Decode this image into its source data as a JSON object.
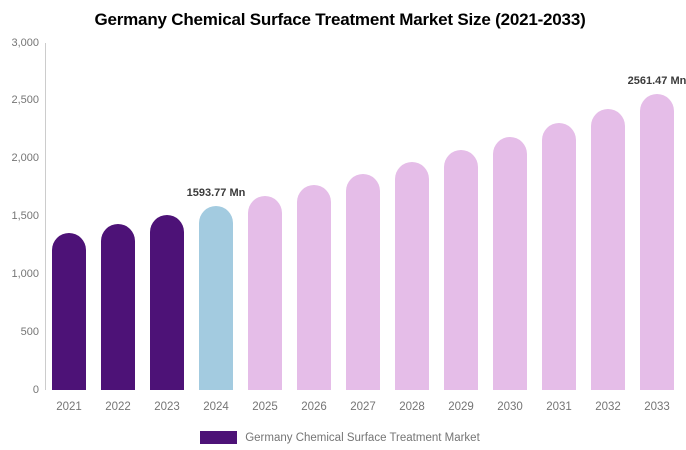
{
  "chart": {
    "title": "Germany Chemical Surface Treatment Market Size (2021-2033)"
  },
  "legend": {
    "label": "Germany Chemical Surface Treatment Market",
    "swatch_color": "#4D1277"
  },
  "chart_data": {
    "type": "bar",
    "title": "Germany Chemical Surface Treatment Market Size (2021-2033)",
    "unit": "Mn",
    "categories": [
      "2021",
      "2022",
      "2023",
      "2024",
      "2025",
      "2026",
      "2027",
      "2028",
      "2029",
      "2030",
      "2031",
      "2032",
      "2033"
    ],
    "values": [
      1360,
      1434,
      1512,
      1593.77,
      1680,
      1771,
      1867,
      1968,
      2075,
      2187,
      2306,
      2431,
      2561.47
    ],
    "point_roles": [
      "historical",
      "historical",
      "historical",
      "current",
      "forecast",
      "forecast",
      "forecast",
      "forecast",
      "forecast",
      "forecast",
      "forecast",
      "forecast",
      "forecast"
    ],
    "palette": {
      "historical": "#4D1277",
      "current": "#A3CBE0",
      "forecast": "#E5BDE8"
    },
    "annotations": [
      {
        "category": "2024",
        "text": "1593.77 Mn"
      },
      {
        "category": "2033",
        "text": "2561.47 Mn"
      }
    ],
    "xlabel": "",
    "ylabel": "",
    "ylim": [
      0,
      3000
    ],
    "yticks": [
      {
        "value": 0,
        "label": "0"
      },
      {
        "value": 500,
        "label": "500"
      },
      {
        "value": 1000,
        "label": "1,000"
      },
      {
        "value": 1500,
        "label": "1,500"
      },
      {
        "value": 2000,
        "label": "2,000"
      },
      {
        "value": 2500,
        "label": "2,500"
      },
      {
        "value": 3000,
        "label": "3,000"
      }
    ],
    "grid": false,
    "legend_position": "bottom",
    "series_name": "Germany Chemical Surface Treatment Market"
  }
}
